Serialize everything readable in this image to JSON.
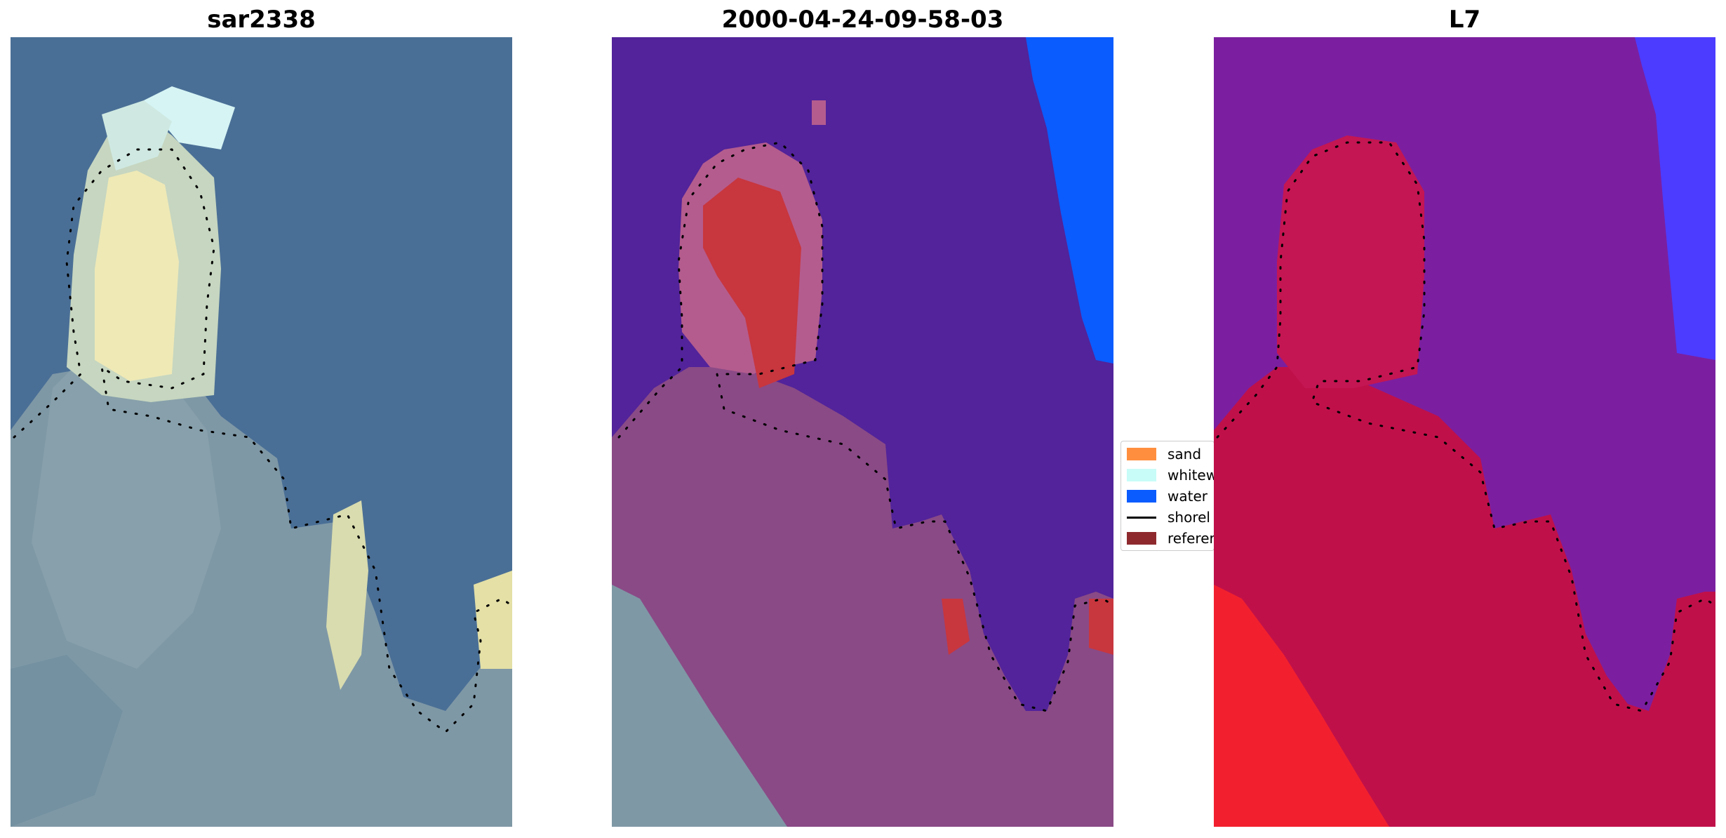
{
  "panels": [
    {
      "title": "sar2338"
    },
    {
      "title": "2000-04-24-09-58-03"
    },
    {
      "title": "L7"
    }
  ],
  "legend": [
    {
      "label": "sand",
      "color": "#ff8f3f"
    },
    {
      "label": "whitew",
      "color": "#c8fcf8"
    },
    {
      "label": "water",
      "color": "#0a5cff"
    },
    {
      "label": "shorel",
      "color": "#000000"
    },
    {
      "label": "referer",
      "color": "#8e2a2e"
    }
  ]
}
